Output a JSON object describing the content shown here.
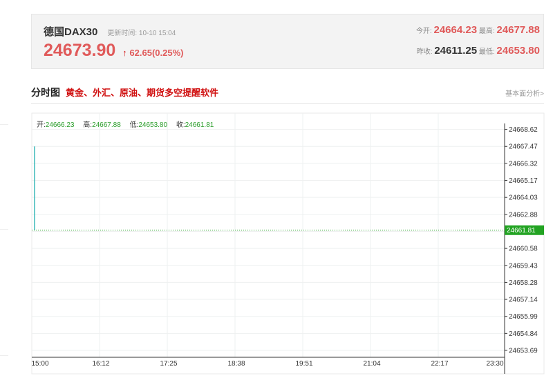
{
  "quote": {
    "name": "德国DAX30",
    "update_label": "更新时间:",
    "update_time": "10-10 15:04",
    "price": "24673.90",
    "change": "62.65(0.25%)",
    "arrow": "↑",
    "open_label": "今开:",
    "open": "24664.23",
    "high_label": "最高:",
    "high": "24677.88",
    "prev_close_label": "昨收:",
    "prev_close": "24611.25",
    "low_label": "最低:",
    "low": "24653.80"
  },
  "section": {
    "title": "分时图",
    "promo": "黄金、外汇、原油、期货多空提醒软件",
    "link": "基本面分析>"
  },
  "ohlc": {
    "open_label": "开:",
    "open": "24666.23",
    "high_label": "高:",
    "high": "24667.88",
    "low_label": "低:",
    "low": "24653.80",
    "close_label": "收:",
    "close": "24661.81"
  },
  "colors": {
    "up": "#e05a5a",
    "line": "#3bb8b8",
    "current": "#22a322",
    "ohlc_values": "#2a9d2a"
  },
  "chart_data": {
    "type": "line",
    "x_ticks": [
      "15:00",
      "16:12",
      "17:25",
      "18:38",
      "19:51",
      "21:04",
      "22:17",
      "23:30"
    ],
    "y_ticks": [
      "24668.62",
      "24667.47",
      "24666.32",
      "24665.17",
      "24664.03",
      "24662.88",
      "24661.81",
      "24660.58",
      "24659.43",
      "24658.28",
      "24657.14",
      "24655.99",
      "24654.84",
      "24653.69"
    ],
    "ylim": [
      24653.69,
      24668.62
    ],
    "series": [
      {
        "x": [
          "15:00",
          "15:00"
        ],
        "y": [
          24667.47,
          24661.81
        ]
      }
    ],
    "current_value": "24661.81",
    "grid": true
  }
}
